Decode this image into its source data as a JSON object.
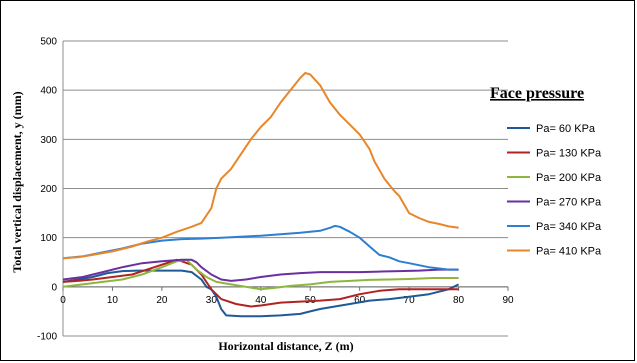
{
  "chart_data": {
    "type": "line",
    "title": "",
    "xlabel": "Horizontal distance, Z (m)",
    "ylabel": "Total vertical displacement, y (mm)",
    "xlim": [
      0,
      90
    ],
    "ylim": [
      -100,
      500
    ],
    "xticks": [
      0,
      10,
      20,
      30,
      40,
      50,
      60,
      70,
      80,
      90
    ],
    "yticks": [
      -100,
      0,
      100,
      200,
      300,
      400,
      500
    ],
    "grid": "horizontal",
    "legend": {
      "title": "Face pressure",
      "placement": "right"
    },
    "series": [
      {
        "name": "Pa= 60 KPa",
        "color": "#1f5a96",
        "points": [
          [
            0,
            10
          ],
          [
            3,
            15
          ],
          [
            6,
            20
          ],
          [
            9,
            28
          ],
          [
            12,
            32
          ],
          [
            15,
            33
          ],
          [
            20,
            33
          ],
          [
            24,
            33
          ],
          [
            26,
            30
          ],
          [
            28,
            15
          ],
          [
            29,
            0
          ],
          [
            30,
            -5
          ],
          [
            31,
            -20
          ],
          [
            32,
            -45
          ],
          [
            33,
            -58
          ],
          [
            36,
            -60
          ],
          [
            40,
            -60
          ],
          [
            44,
            -58
          ],
          [
            48,
            -55
          ],
          [
            50,
            -50
          ],
          [
            52,
            -45
          ],
          [
            55,
            -40
          ],
          [
            58,
            -35
          ],
          [
            62,
            -28
          ],
          [
            66,
            -25
          ],
          [
            70,
            -20
          ],
          [
            74,
            -15
          ],
          [
            78,
            -5
          ],
          [
            80,
            5
          ]
        ]
      },
      {
        "name": "Pa= 130 KPa",
        "color": "#b22222",
        "points": [
          [
            0,
            10
          ],
          [
            3,
            12
          ],
          [
            6,
            15
          ],
          [
            10,
            20
          ],
          [
            14,
            25
          ],
          [
            17,
            35
          ],
          [
            20,
            45
          ],
          [
            23,
            55
          ],
          [
            24,
            52
          ],
          [
            26,
            45
          ],
          [
            28,
            25
          ],
          [
            29,
            10
          ],
          [
            30,
            -5
          ],
          [
            32,
            -25
          ],
          [
            35,
            -35
          ],
          [
            38,
            -40
          ],
          [
            40,
            -38
          ],
          [
            44,
            -32
          ],
          [
            48,
            -30
          ],
          [
            52,
            -28
          ],
          [
            56,
            -25
          ],
          [
            60,
            -15
          ],
          [
            64,
            -8
          ],
          [
            68,
            -5
          ],
          [
            72,
            -5
          ],
          [
            76,
            -5
          ],
          [
            80,
            -5
          ]
        ]
      },
      {
        "name": "Pa= 200 KPa",
        "color": "#8db73c",
        "points": [
          [
            0,
            0
          ],
          [
            4,
            5
          ],
          [
            8,
            10
          ],
          [
            12,
            15
          ],
          [
            16,
            25
          ],
          [
            20,
            40
          ],
          [
            23,
            52
          ],
          [
            25,
            55
          ],
          [
            27,
            35
          ],
          [
            29,
            20
          ],
          [
            31,
            10
          ],
          [
            34,
            5
          ],
          [
            37,
            0
          ],
          [
            40,
            -5
          ],
          [
            43,
            -2
          ],
          [
            46,
            2
          ],
          [
            50,
            5
          ],
          [
            54,
            10
          ],
          [
            58,
            12
          ],
          [
            62,
            14
          ],
          [
            66,
            15
          ],
          [
            70,
            16
          ],
          [
            75,
            18
          ],
          [
            80,
            18
          ]
        ]
      },
      {
        "name": "Pa= 270 KPa",
        "color": "#6a2fa0",
        "points": [
          [
            0,
            15
          ],
          [
            4,
            20
          ],
          [
            8,
            30
          ],
          [
            12,
            40
          ],
          [
            16,
            48
          ],
          [
            20,
            52
          ],
          [
            24,
            55
          ],
          [
            26,
            55
          ],
          [
            27,
            50
          ],
          [
            28,
            40
          ],
          [
            30,
            25
          ],
          [
            32,
            15
          ],
          [
            34,
            12
          ],
          [
            37,
            15
          ],
          [
            40,
            20
          ],
          [
            44,
            25
          ],
          [
            48,
            28
          ],
          [
            52,
            30
          ],
          [
            56,
            30
          ],
          [
            60,
            30
          ],
          [
            64,
            31
          ],
          [
            68,
            32
          ],
          [
            72,
            33
          ],
          [
            76,
            35
          ],
          [
            80,
            35
          ]
        ]
      },
      {
        "name": "Pa= 340 KPa",
        "color": "#2e7fd1",
        "points": [
          [
            0,
            58
          ],
          [
            4,
            62
          ],
          [
            8,
            70
          ],
          [
            12,
            78
          ],
          [
            16,
            88
          ],
          [
            20,
            94
          ],
          [
            24,
            97
          ],
          [
            28,
            98
          ],
          [
            32,
            100
          ],
          [
            36,
            102
          ],
          [
            40,
            104
          ],
          [
            44,
            107
          ],
          [
            48,
            110
          ],
          [
            52,
            114
          ],
          [
            54,
            120
          ],
          [
            55,
            124
          ],
          [
            56,
            122
          ],
          [
            58,
            112
          ],
          [
            60,
            100
          ],
          [
            62,
            82
          ],
          [
            64,
            65
          ],
          [
            66,
            60
          ],
          [
            68,
            52
          ],
          [
            70,
            48
          ],
          [
            74,
            40
          ],
          [
            78,
            35
          ],
          [
            80,
            35
          ]
        ]
      },
      {
        "name": "Pa= 410 KPa",
        "color": "#e8862a",
        "points": [
          [
            0,
            58
          ],
          [
            3,
            60
          ],
          [
            6,
            65
          ],
          [
            10,
            72
          ],
          [
            14,
            82
          ],
          [
            17,
            92
          ],
          [
            20,
            100
          ],
          [
            23,
            112
          ],
          [
            26,
            122
          ],
          [
            28,
            130
          ],
          [
            30,
            160
          ],
          [
            31,
            200
          ],
          [
            32,
            220
          ],
          [
            34,
            240
          ],
          [
            36,
            270
          ],
          [
            38,
            300
          ],
          [
            40,
            325
          ],
          [
            42,
            345
          ],
          [
            44,
            375
          ],
          [
            46,
            400
          ],
          [
            48,
            425
          ],
          [
            49,
            435
          ],
          [
            50,
            432
          ],
          [
            52,
            410
          ],
          [
            54,
            375
          ],
          [
            56,
            350
          ],
          [
            58,
            330
          ],
          [
            60,
            310
          ],
          [
            62,
            280
          ],
          [
            63,
            255
          ],
          [
            65,
            220
          ],
          [
            67,
            195
          ],
          [
            68,
            185
          ],
          [
            70,
            150
          ],
          [
            72,
            140
          ],
          [
            74,
            132
          ],
          [
            76,
            128
          ],
          [
            78,
            123
          ],
          [
            80,
            120
          ]
        ]
      }
    ]
  }
}
